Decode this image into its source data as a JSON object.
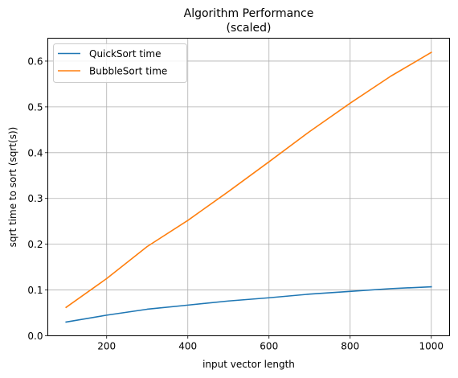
{
  "chart_data": {
    "type": "line",
    "title_line1": "Algorithm Performance",
    "title_line2": "(scaled)",
    "xlabel": "input vector length",
    "ylabel": "sqrt time to sort (sqrt(s))",
    "xlim": [
      55,
      1045
    ],
    "ylim": [
      0.0,
      0.65
    ],
    "xticks": [
      200,
      400,
      600,
      800,
      1000
    ],
    "yticks": [
      0.0,
      0.1,
      0.2,
      0.3,
      0.4,
      0.5,
      0.6
    ],
    "xtick_labels": [
      "200",
      "400",
      "600",
      "800",
      "1000"
    ],
    "ytick_labels": [
      "0.0",
      "0.1",
      "0.2",
      "0.3",
      "0.4",
      "0.5",
      "0.6"
    ],
    "grid": true,
    "legend_position": "upper-left",
    "x": [
      100,
      200,
      300,
      400,
      500,
      600,
      700,
      800,
      900,
      1000
    ],
    "series": [
      {
        "name": "QuickSort time",
        "color": "#1f77b4",
        "values": [
          0.03,
          0.045,
          0.058,
          0.067,
          0.076,
          0.083,
          0.091,
          0.097,
          0.103,
          0.107
        ]
      },
      {
        "name": "BubbleSort time",
        "color": "#ff7f0e",
        "values": [
          0.062,
          0.125,
          0.195,
          0.252,
          0.315,
          0.38,
          0.446,
          0.508,
          0.567,
          0.619
        ]
      }
    ]
  }
}
